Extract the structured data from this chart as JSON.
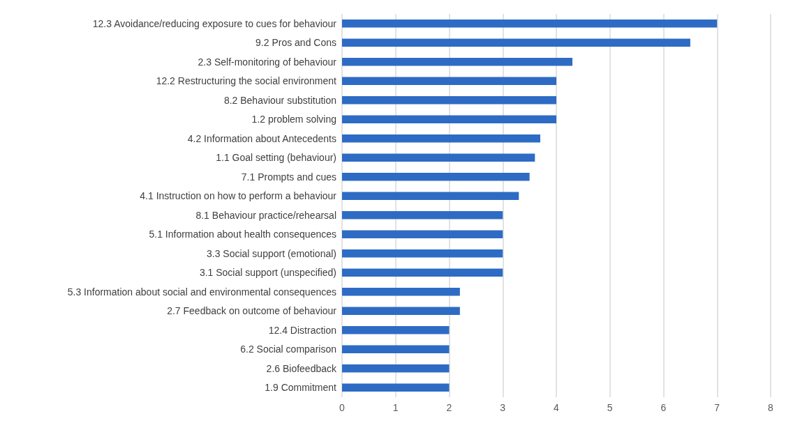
{
  "chart_data": {
    "type": "bar",
    "orientation": "horizontal",
    "categories": [
      "12.3 Avoidance/reducing exposure to cues for behaviour",
      "9.2 Pros and Cons",
      "2.3 Self-monitoring of behaviour",
      "12.2 Restructuring the social environment",
      "8.2 Behaviour substitution",
      "1.2 problem solving",
      "4.2 Information about Antecedents",
      "1.1 Goal setting (behaviour)",
      "7.1 Prompts and cues",
      "4.1 Instruction on how to perform a behaviour",
      "8.1 Behaviour practice/rehearsal",
      "5.1 Information about health consequences",
      "3.3 Social support (emotional)",
      "3.1 Social support (unspecified)",
      "5.3 Information about social and environmental consequences",
      "2.7 Feedback on outcome of behaviour",
      "12.4 Distraction",
      "6.2 Social comparison",
      "2.6 Biofeedback",
      "1.9 Commitment"
    ],
    "values": [
      7,
      6.5,
      4.3,
      4,
      4,
      4,
      3.7,
      3.6,
      3.5,
      3.3,
      3,
      3,
      3,
      3,
      2.2,
      2.2,
      2,
      2,
      2,
      2
    ],
    "color": "#2e6bc4",
    "xlim": [
      0,
      8
    ],
    "xticks": [
      0,
      1,
      2,
      3,
      4,
      5,
      6,
      7,
      8
    ],
    "grid": "x"
  }
}
